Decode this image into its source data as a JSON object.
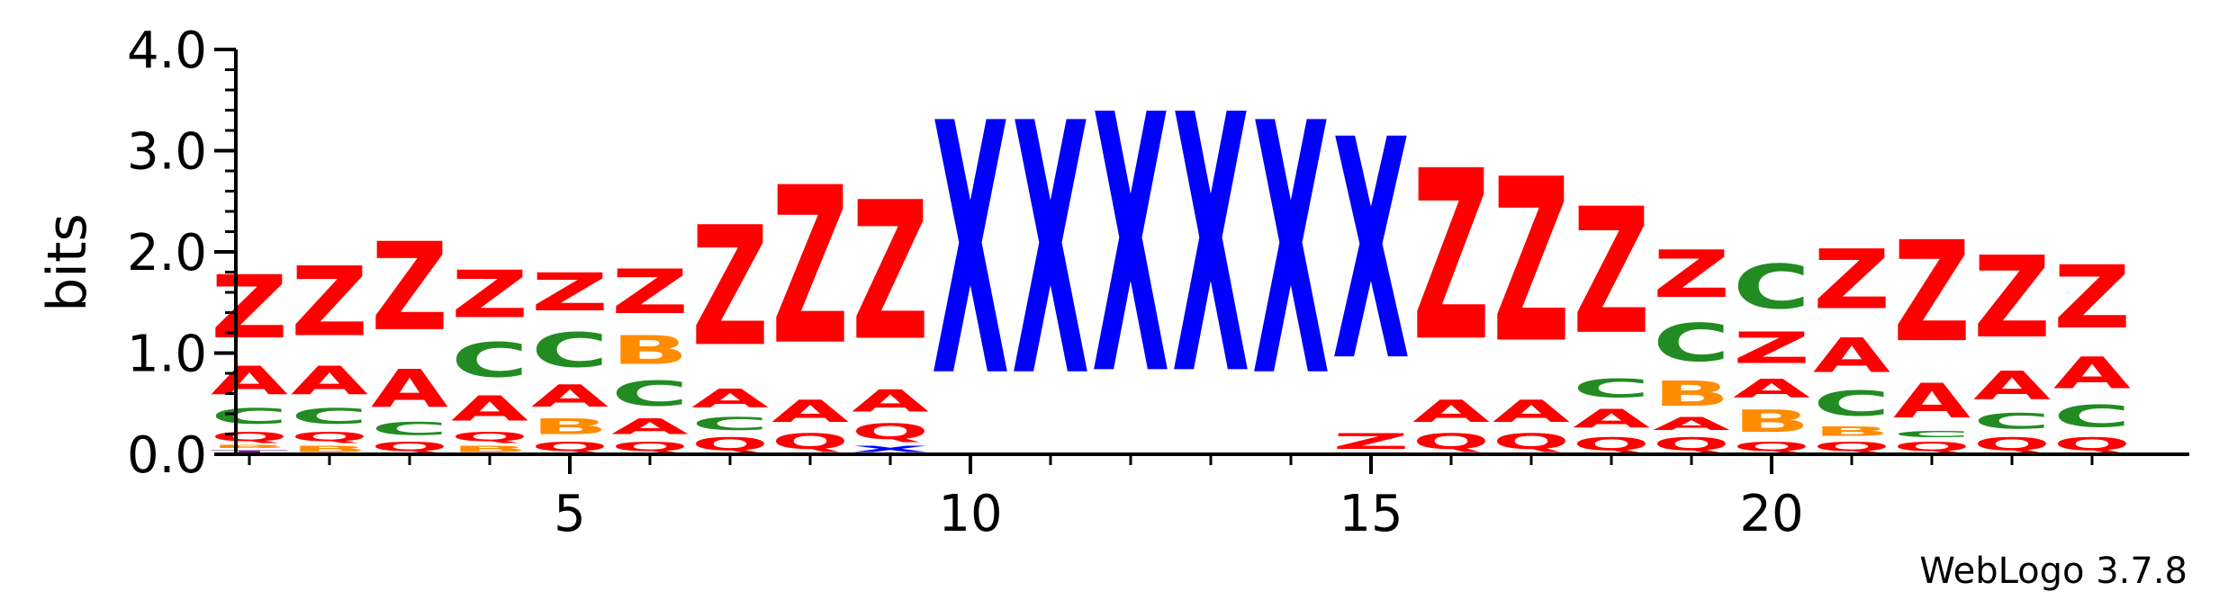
{
  "chart_data": {
    "type": "sequence-logo",
    "ylabel": "bits",
    "ylim": [
      0,
      4.0
    ],
    "y_ticks": [
      "0.0",
      "1.0",
      "2.0",
      "3.0",
      "4.0"
    ],
    "x_ticks": [
      "5",
      "10",
      "15",
      "20"
    ],
    "x_tick_positions": [
      5,
      10,
      15,
      20
    ],
    "x_range": [
      1,
      24
    ],
    "colors": {
      "Z": "#ff0000",
      "Q": "#ff0000",
      "A": "#ff0000",
      "C": "#228b22",
      "B": "#ff8c00",
      "X": "#0000ff",
      "T": "#7a1fa2"
    },
    "positions": [
      {
        "pos": 1,
        "stack": [
          [
            "T",
            0.05
          ],
          [
            "B",
            0.05
          ],
          [
            "Q",
            0.15
          ],
          [
            "C",
            0.25
          ],
          [
            "A",
            0.45
          ],
          [
            "Z",
            1.0
          ]
        ]
      },
      {
        "pos": 2,
        "stack": [
          [
            "B",
            0.1
          ],
          [
            "Q",
            0.15
          ],
          [
            "C",
            0.25
          ],
          [
            "A",
            0.45
          ],
          [
            "Z",
            1.1
          ]
        ]
      },
      {
        "pos": 3,
        "stack": [
          [
            "Q",
            0.15
          ],
          [
            "C",
            0.2
          ],
          [
            "A",
            0.6
          ],
          [
            "Z",
            1.4
          ]
        ]
      },
      {
        "pos": 4,
        "stack": [
          [
            "B",
            0.1
          ],
          [
            "Q",
            0.15
          ],
          [
            "A",
            0.4
          ],
          [
            "C",
            0.55
          ],
          [
            "Z",
            0.75
          ]
        ]
      },
      {
        "pos": 5,
        "stack": [
          [
            "Q",
            0.15
          ],
          [
            "B",
            0.25
          ],
          [
            "A",
            0.35
          ],
          [
            "C",
            0.55
          ],
          [
            "Z",
            0.6
          ]
        ]
      },
      {
        "pos": 6,
        "stack": [
          [
            "Q",
            0.15
          ],
          [
            "A",
            0.25
          ],
          [
            "C",
            0.4
          ],
          [
            "B",
            0.45
          ],
          [
            "Z",
            0.7
          ]
        ]
      },
      {
        "pos": 7,
        "stack": [
          [
            "Q",
            0.2
          ],
          [
            "C",
            0.2
          ],
          [
            "A",
            0.3
          ],
          [
            "Z",
            1.9
          ]
        ]
      },
      {
        "pos": 8,
        "stack": [
          [
            "Q",
            0.25
          ],
          [
            "A",
            0.35
          ],
          [
            "Z",
            2.5
          ]
        ]
      },
      {
        "pos": 9,
        "stack": [
          [
            "X",
            0.1
          ],
          [
            "Q",
            0.25
          ],
          [
            "A",
            0.35
          ],
          [
            "Z",
            2.2
          ]
        ]
      },
      {
        "pos": 10,
        "stack": [
          [
            "X",
            4.0
          ]
        ]
      },
      {
        "pos": 11,
        "stack": [
          [
            "X",
            4.0
          ]
        ]
      },
      {
        "pos": 12,
        "stack": [
          [
            "X",
            4.1
          ]
        ]
      },
      {
        "pos": 13,
        "stack": [
          [
            "X",
            4.1
          ]
        ]
      },
      {
        "pos": 14,
        "stack": [
          [
            "X",
            4.0
          ]
        ]
      },
      {
        "pos": 15,
        "stack": [
          [
            "Z",
            0.25
          ],
          [
            "X",
            3.5
          ]
        ]
      },
      {
        "pos": 16,
        "stack": [
          [
            "Q",
            0.25
          ],
          [
            "A",
            0.35
          ],
          [
            "Z",
            2.7
          ]
        ]
      },
      {
        "pos": 17,
        "stack": [
          [
            "Q",
            0.25
          ],
          [
            "A",
            0.35
          ],
          [
            "Z",
            2.6
          ]
        ]
      },
      {
        "pos": 18,
        "stack": [
          [
            "Q",
            0.2
          ],
          [
            "A",
            0.3
          ],
          [
            "C",
            0.3
          ],
          [
            "Z",
            2.0
          ]
        ]
      },
      {
        "pos": 19,
        "stack": [
          [
            "Q",
            0.2
          ],
          [
            "A",
            0.2
          ],
          [
            "B",
            0.4
          ],
          [
            "C",
            0.6
          ],
          [
            "Z",
            0.75
          ]
        ]
      },
      {
        "pos": 20,
        "stack": [
          [
            "Q",
            0.15
          ],
          [
            "B",
            0.35
          ],
          [
            "A",
            0.3
          ],
          [
            "Z",
            0.5
          ],
          [
            "C",
            0.7
          ]
        ]
      },
      {
        "pos": 21,
        "stack": [
          [
            "Q",
            0.15
          ],
          [
            "B",
            0.15
          ],
          [
            "C",
            0.4
          ],
          [
            "A",
            0.55
          ],
          [
            "Z",
            0.95
          ]
        ]
      },
      {
        "pos": 22,
        "stack": [
          [
            "Q",
            0.15
          ],
          [
            "C",
            0.1
          ],
          [
            "A",
            0.55
          ],
          [
            "Z",
            1.6
          ]
        ]
      },
      {
        "pos": 23,
        "stack": [
          [
            "Q",
            0.2
          ],
          [
            "C",
            0.25
          ],
          [
            "A",
            0.45
          ],
          [
            "Z",
            1.3
          ]
        ]
      },
      {
        "pos": 24,
        "stack": [
          [
            "Q",
            0.2
          ],
          [
            "C",
            0.35
          ],
          [
            "A",
            0.5
          ],
          [
            "Z",
            1.0
          ]
        ]
      }
    ]
  },
  "footer": {
    "credit": "WebLogo 3.7.8"
  }
}
